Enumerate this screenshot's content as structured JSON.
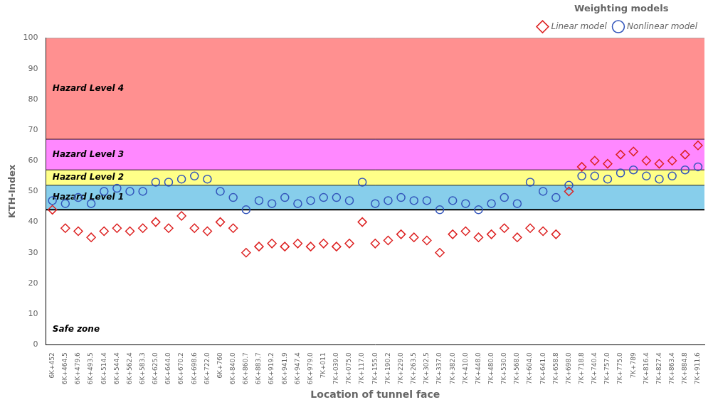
{
  "chart_data": {
    "type": "scatter",
    "x_label": "Location of tunnel face",
    "y_label": "KTH-Index",
    "categories": [
      "6K+452",
      "6K+464.5",
      "6K+479.6",
      "6K+493.5",
      "6K+514.4",
      "6K+544.4",
      "6K+562.4",
      "6K+583.3",
      "6K+625.0",
      "6K+644.0",
      "6K+670.2",
      "6K+698.6",
      "6K+722.0",
      "6K+760",
      "6K+840.0",
      "6K+860.7",
      "6K+883.7",
      "6K+919.2",
      "6K+941.9",
      "6K+947.4",
      "6K+979.0",
      "7K+011",
      "7K+039.0",
      "7K+075.0",
      "7K+117.0",
      "7K+155.0",
      "7K+190.2",
      "7K+229.0",
      "7K+263.5",
      "7K+302.5",
      "7K+337.0",
      "7K+382.0",
      "7K+410.0",
      "7K+448.0",
      "7K+480.0",
      "7K+530.0",
      "7K+568.0",
      "7K+604.0",
      "7K+641.0",
      "7K+658.8",
      "7K+698.0",
      "7K+718.8",
      "7K+740.4",
      "7K+757.0",
      "7K+775.0",
      "7K+789",
      "7K+816.4",
      "7K+827.4",
      "7K+863.4",
      "7K+884.8",
      "7K+911.6"
    ],
    "series": [
      {
        "name": "Linear model",
        "color": "#DD2222",
        "marker": "diamond",
        "values": [
          44,
          38,
          37,
          35,
          37,
          38,
          37,
          38,
          40,
          38,
          42,
          38,
          37,
          40,
          38,
          30,
          32,
          33,
          32,
          33,
          32,
          33,
          32,
          33,
          40,
          33,
          34,
          36,
          35,
          34,
          30,
          36,
          37,
          35,
          36,
          38,
          35,
          38,
          37,
          36,
          50,
          58,
          60,
          59,
          62,
          63,
          60,
          59,
          60,
          62,
          65
        ]
      },
      {
        "name": "Nonlinear model",
        "color": "#3355BB",
        "marker": "circle",
        "values": [
          47,
          46,
          48,
          46,
          50,
          51,
          50,
          50,
          53,
          53,
          54,
          55,
          54,
          50,
          48,
          44,
          47,
          46,
          48,
          46,
          47,
          48,
          48,
          47,
          53,
          46,
          47,
          48,
          47,
          47,
          44,
          47,
          46,
          44,
          46,
          48,
          46,
          53,
          50,
          48,
          52,
          55,
          55,
          54,
          56,
          57,
          55,
          54,
          55,
          57,
          58
        ]
      }
    ],
    "bands": [
      {
        "label": "Hazard Level 4",
        "lo": 67,
        "hi": 100,
        "color": "#FF9090"
      },
      {
        "label": "Hazard Level 3",
        "lo": 57,
        "hi": 67,
        "color": "#FF88FF"
      },
      {
        "label": "Hazard Level 2",
        "lo": 52,
        "hi": 57,
        "color": "#FFFF88"
      },
      {
        "label": "Hazard Level 1",
        "lo": 44,
        "hi": 52,
        "color": "#87CEEB"
      }
    ],
    "annotations": [
      {
        "text": "Safe zone",
        "y": 5
      }
    ],
    "legend": "upper right",
    "legend_title": "Weighting models",
    "ylim": [
      0,
      100
    ],
    "yticks": [
      0,
      10,
      20,
      30,
      40,
      50,
      60,
      70,
      80,
      90,
      100
    ],
    "grid": false
  }
}
